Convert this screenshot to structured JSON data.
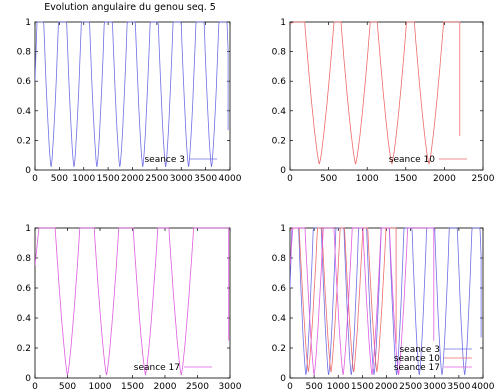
{
  "title": "Evolution angulaire du genou seq. 5",
  "colors": {
    "seance_3": "#6f6fe6",
    "seance_10": "#ee6b6b",
    "seance_17": "#e05ce0"
  },
  "chart_data": [
    {
      "type": "line",
      "title": "Evolution angulaire du genou seq. 5",
      "xlim": [
        0,
        4000
      ],
      "ylim": [
        0,
        1
      ],
      "xticks": [
        "0",
        "500",
        "1000",
        "1500",
        "2000",
        "2500",
        "3000",
        "3500",
        "4000"
      ],
      "yticks": [
        "0",
        "0.2",
        "0.4",
        "0.6",
        "0.8",
        "1"
      ],
      "legend": "bottom-right",
      "series": [
        {
          "name": "seance 3",
          "color": "#6f6fe6",
          "period": 470,
          "phase": 330,
          "min": 0.02,
          "start": 0.6,
          "end_x": 3960,
          "end_y": 0.27
        }
      ]
    },
    {
      "type": "line",
      "xlim": [
        0,
        2500
      ],
      "ylim": [
        0,
        1
      ],
      "xticks": [
        "0",
        "500",
        "1000",
        "1500",
        "2000",
        "2500"
      ],
      "yticks": [
        "0",
        "0.2",
        "0.4",
        "0.6",
        "0.8",
        "1"
      ],
      "legend": "bottom-right",
      "series": [
        {
          "name": "seance 10",
          "color": "#ee6b6b",
          "troughs": [
            380,
            850,
            1320,
            1800
          ],
          "min": 0.04,
          "start": 0.99,
          "end_x": 2200,
          "end_y": 0.23
        }
      ]
    },
    {
      "type": "line",
      "xlim": [
        0,
        3000
      ],
      "ylim": [
        0,
        1
      ],
      "xticks": [
        "0",
        "500",
        "1000",
        "1500",
        "2000",
        "2500",
        "3000"
      ],
      "yticks": [
        "0",
        "0.2",
        "0.4",
        "0.6",
        "0.8",
        "1"
      ],
      "legend": "bottom-right",
      "series": [
        {
          "name": "seance 17",
          "color": "#e05ce0",
          "troughs": [
            500,
            1100,
            1700,
            2250
          ],
          "min": 0.02,
          "start": 0.75,
          "end_x": 2980,
          "end_y": 0.25
        }
      ]
    },
    {
      "type": "line",
      "xlim": [
        0,
        4000
      ],
      "ylim": [
        0,
        1
      ],
      "xticks": [
        "0",
        "500",
        "1000",
        "1500",
        "2000",
        "2500",
        "3000",
        "3500",
        "4000"
      ],
      "yticks": [
        "0",
        "0.2",
        "0.4",
        "0.6",
        "0.8",
        "1"
      ],
      "legend": "bottom-right",
      "series": [
        {
          "name": "seance 3",
          "color": "#6f6fe6"
        },
        {
          "name": "seance 10",
          "color": "#ee6b6b"
        },
        {
          "name": "seance 17",
          "color": "#e05ce0"
        }
      ]
    }
  ]
}
